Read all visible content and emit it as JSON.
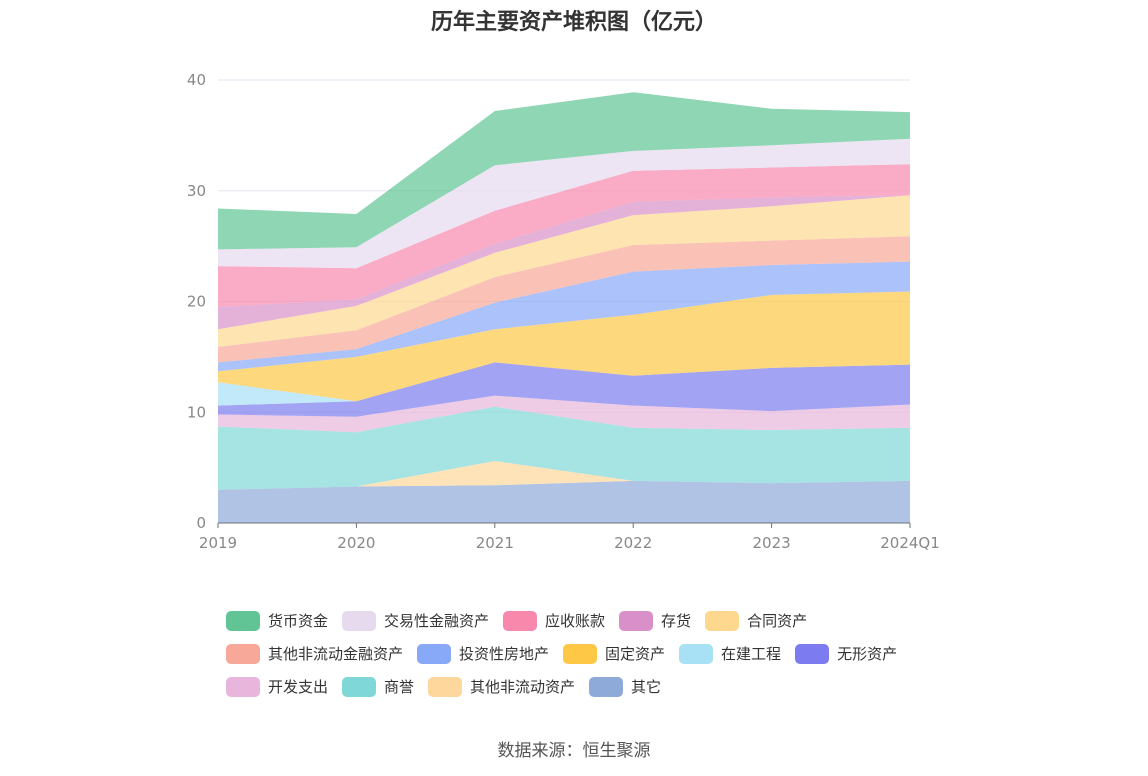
{
  "chart_data": {
    "type": "area",
    "stacked": true,
    "title": "历年主要资产堆积图（亿元）",
    "source": "数据来源：恒生聚源",
    "x": [
      "2019",
      "2020",
      "2021",
      "2022",
      "2023",
      "2024Q1"
    ],
    "ylim": [
      0,
      40
    ],
    "yticks": [
      0,
      10,
      20,
      30,
      40
    ],
    "grid": true,
    "legend_position": "bottom",
    "series": [
      {
        "name": "其它",
        "color": "#8eaad8",
        "values": [
          3.0,
          3.3,
          3.4,
          3.8,
          3.6,
          3.8
        ]
      },
      {
        "name": "其他非流动资产",
        "color": "#fdd79b",
        "values": [
          0.0,
          0.0,
          2.2,
          0.0,
          0.0,
          0.0
        ]
      },
      {
        "name": "商誉",
        "color": "#80d7d7",
        "values": [
          5.7,
          4.9,
          4.9,
          4.8,
          4.8,
          4.8
        ]
      },
      {
        "name": "开发支出",
        "color": "#e8b6dc",
        "values": [
          1.1,
          1.4,
          1.0,
          2.0,
          1.7,
          2.1
        ]
      },
      {
        "name": "无形资产",
        "color": "#7c7cf0",
        "values": [
          0.8,
          1.4,
          3.0,
          2.7,
          3.9,
          3.6
        ]
      },
      {
        "name": "在建工程",
        "color": "#a8e0f6",
        "values": [
          2.1,
          0.0,
          0.0,
          0.0,
          0.0,
          0.0
        ]
      },
      {
        "name": "固定资产",
        "color": "#fdc845",
        "values": [
          1.0,
          4.0,
          3.0,
          5.5,
          6.6,
          6.6
        ]
      },
      {
        "name": "投资性房地产",
        "color": "#88a8f8",
        "values": [
          0.8,
          0.7,
          2.4,
          3.9,
          2.7,
          2.7
        ]
      },
      {
        "name": "其他非流动金融资产",
        "color": "#f8a898",
        "values": [
          1.4,
          1.7,
          2.3,
          2.4,
          2.2,
          2.3
        ]
      },
      {
        "name": "合同资产",
        "color": "#fdd88e",
        "values": [
          1.6,
          2.2,
          2.2,
          2.7,
          3.1,
          3.7
        ]
      },
      {
        "name": "存货",
        "color": "#d990c8",
        "values": [
          2.0,
          0.6,
          0.8,
          1.2,
          0.8,
          0.0
        ]
      },
      {
        "name": "应收账款",
        "color": "#f888ac",
        "values": [
          3.7,
          2.8,
          3.0,
          2.8,
          2.7,
          2.8
        ]
      },
      {
        "name": "交易性金融资产",
        "color": "#e6daee",
        "values": [
          1.5,
          1.9,
          4.1,
          1.8,
          2.0,
          2.3
        ]
      },
      {
        "name": "货币资金",
        "color": "#60c494",
        "values": [
          3.7,
          3.0,
          4.9,
          5.3,
          3.3,
          2.4
        ]
      }
    ]
  },
  "legend_rows": [
    [
      "货币资金",
      "交易性金融资产",
      "应收账款",
      "存货",
      "合同资产"
    ],
    [
      "其他非流动金融资产",
      "投资性房地产",
      "固定资产",
      "在建工程",
      "无形资产"
    ],
    [
      "开发支出",
      "商誉",
      "其他非流动资产",
      "其它"
    ]
  ]
}
